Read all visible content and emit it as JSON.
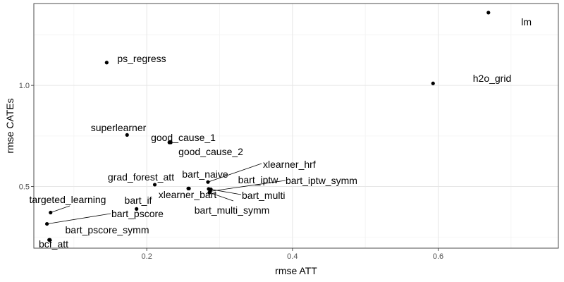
{
  "chart_data": {
    "type": "scatter",
    "xlabel": "rmse ATT",
    "ylabel": "rmse CATEs",
    "xlim": [
      0.045,
      0.765
    ],
    "ylim": [
      0.195,
      1.405
    ],
    "x_ticks": [
      0.2,
      0.4,
      0.6
    ],
    "x_tick_labels": [
      "0.2",
      "0.4",
      "0.6"
    ],
    "y_ticks": [
      0.5,
      1.0
    ],
    "y_tick_labels": [
      "0.5",
      "1.0"
    ],
    "grid": true,
    "legend": "none",
    "points": [
      {
        "label": "lm",
        "x": 0.669,
        "y": 1.36
      },
      {
        "label": "ps_regress",
        "x": 0.145,
        "y": 1.113
      },
      {
        "label": "h2o_grid",
        "x": 0.593,
        "y": 1.01
      },
      {
        "label": "superlearner",
        "x": 0.173,
        "y": 0.755
      },
      {
        "label": "good_cause_1",
        "x": 0.231,
        "y": 0.718
      },
      {
        "label": "good_cause_2",
        "x": 0.233,
        "y": 0.718
      },
      {
        "label": "xlearner_hrf",
        "x": 0.284,
        "y": 0.522
      },
      {
        "label": "grad_forest_att",
        "x": 0.211,
        "y": 0.509
      },
      {
        "label": "bart_naive",
        "x": 0.257,
        "y": 0.49
      },
      {
        "label": "bart_iptw",
        "x": 0.285,
        "y": 0.488
      },
      {
        "label": "bart_iptw_symm",
        "x": 0.287,
        "y": 0.476
      },
      {
        "label": "bart_multi",
        "x": 0.288,
        "y": 0.486
      },
      {
        "label": "bart_multi_symm",
        "x": 0.286,
        "y": 0.47
      },
      {
        "label": "xlearner_bart",
        "x": 0.258,
        "y": 0.49
      },
      {
        "label": "bart_if",
        "x": 0.186,
        "y": 0.389
      },
      {
        "label": "targeted_learning",
        "x": 0.068,
        "y": 0.371
      },
      {
        "label": "bart_pscore",
        "x": 0.063,
        "y": 0.315
      },
      {
        "label": "bart_pscore_symm",
        "x": 0.066,
        "y": 0.236
      },
      {
        "label": "bcf_att",
        "x": 0.067,
        "y": 0.236
      }
    ]
  }
}
